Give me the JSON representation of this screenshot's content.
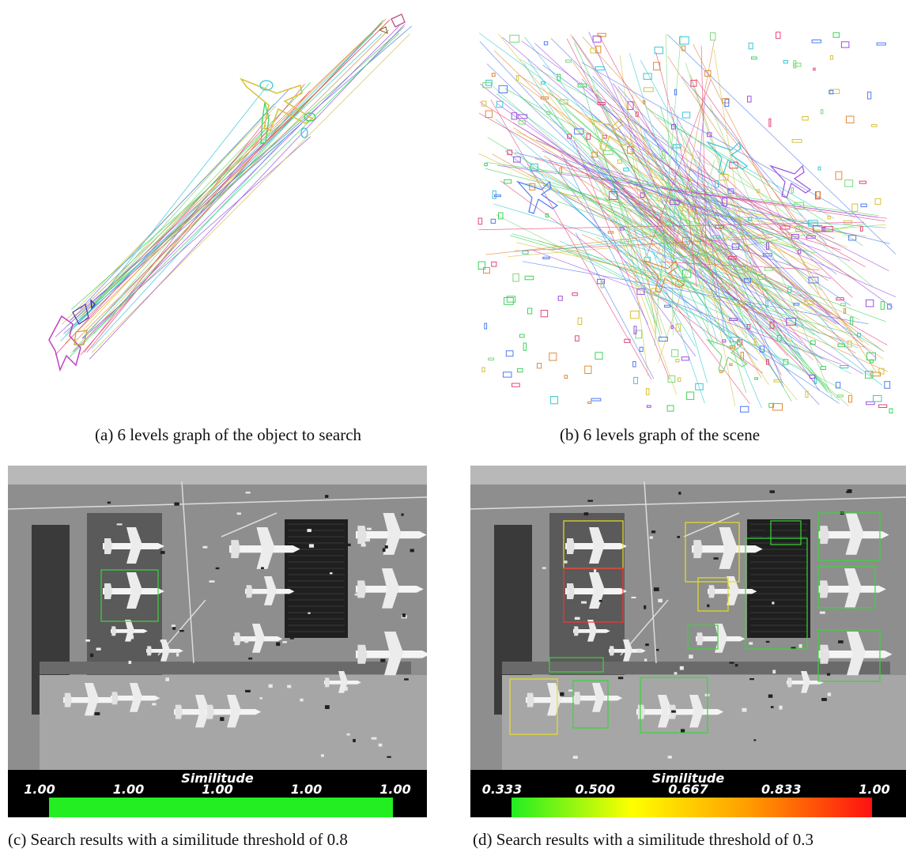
{
  "captions": {
    "a": "(a) 6 levels graph of the object to search",
    "b": "(b) 6 levels graph of the scene",
    "c": "(c) Search results with a similitude threshold of 0.8",
    "d": "(d) Search results with a similitude threshold of 0.3"
  },
  "colorbar_c": {
    "title": "Similitude",
    "ticks": [
      "1.00",
      "1.00",
      "1.00",
      "1.00",
      "1.00"
    ],
    "gradient": [
      "#22ee22",
      "#22ee22"
    ]
  },
  "colorbar_d": {
    "title": "Similitude",
    "ticks": [
      "0.333",
      "0.500",
      "0.667",
      "0.833",
      "1.00"
    ],
    "gradient": [
      "#22ee22",
      "#ffff00",
      "#ff9900",
      "#ff1111"
    ]
  },
  "colors": {
    "graph_lines": [
      "#e6457a",
      "#3fd35a",
      "#4f7cf0",
      "#d8c23a",
      "#35c8d4",
      "#9b4fe0",
      "#e08a3a",
      "#7bd87b"
    ],
    "match_box_high": "#ff3333",
    "match_box_mid": "#e8e020",
    "match_box_low": "#39d639"
  }
}
